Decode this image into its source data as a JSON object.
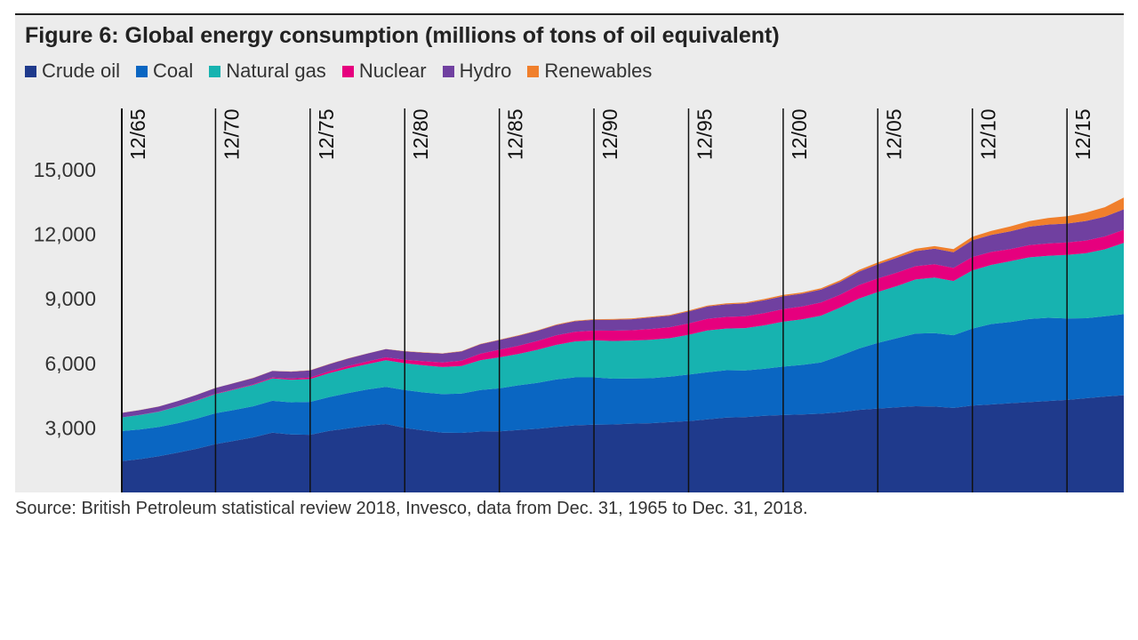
{
  "chart_data": {
    "type": "area",
    "stacked": true,
    "title": "Figure 6: Global energy consumption (millions of tons of oil equivalent)",
    "x_tick_labels": [
      "12/65",
      "12/70",
      "12/75",
      "12/80",
      "12/85",
      "12/90",
      "12/95",
      "12/00",
      "12/05",
      "12/10",
      "12/15"
    ],
    "x_tick_years": [
      1965,
      1970,
      1975,
      1980,
      1985,
      1990,
      1995,
      2000,
      2005,
      2010,
      2015
    ],
    "x_range": [
      1965,
      2018
    ],
    "ylim": [
      0,
      15000
    ],
    "y_ticks": [
      3000,
      6000,
      9000,
      12000,
      15000
    ],
    "y_tick_labels": [
      "3,000",
      "6,000",
      "9,000",
      "12,000",
      "15,000"
    ],
    "grid": "vertical lines at tick years",
    "legend_position": "top-left",
    "x": [
      1965,
      1966,
      1967,
      1968,
      1969,
      1970,
      1971,
      1972,
      1973,
      1974,
      1975,
      1976,
      1977,
      1978,
      1979,
      1980,
      1981,
      1982,
      1983,
      1984,
      1985,
      1986,
      1987,
      1988,
      1989,
      1990,
      1991,
      1992,
      1993,
      1994,
      1995,
      1996,
      1997,
      1998,
      1999,
      2000,
      2001,
      2002,
      2003,
      2004,
      2005,
      2006,
      2007,
      2008,
      2009,
      2010,
      2011,
      2012,
      2013,
      2014,
      2015,
      2016,
      2017,
      2018
    ],
    "series": [
      {
        "name": "Crude oil",
        "color": "#1f3a8c",
        "values": [
          1450,
          1550,
          1680,
          1850,
          2030,
          2250,
          2400,
          2560,
          2780,
          2700,
          2680,
          2860,
          2980,
          3100,
          3180,
          3000,
          2880,
          2780,
          2770,
          2830,
          2840,
          2900,
          2960,
          3050,
          3120,
          3150,
          3160,
          3200,
          3220,
          3270,
          3320,
          3400,
          3480,
          3500,
          3560,
          3600,
          3630,
          3660,
          3730,
          3840,
          3900,
          3960,
          4010,
          3990,
          3930,
          4040,
          4090,
          4150,
          4200,
          4250,
          4300,
          4380,
          4460,
          4520
        ]
      },
      {
        "name": "Coal",
        "color": "#0a66c2",
        "values": [
          1400,
          1380,
          1360,
          1370,
          1400,
          1430,
          1440,
          1450,
          1480,
          1490,
          1530,
          1570,
          1640,
          1680,
          1730,
          1760,
          1770,
          1790,
          1830,
          1930,
          2000,
          2080,
          2130,
          2200,
          2230,
          2200,
          2130,
          2100,
          2090,
          2110,
          2160,
          2190,
          2200,
          2170,
          2190,
          2250,
          2300,
          2380,
          2620,
          2850,
          3050,
          3210,
          3380,
          3420,
          3380,
          3580,
          3740,
          3770,
          3860,
          3870,
          3790,
          3720,
          3730,
          3770
        ]
      },
      {
        "name": "Natural gas",
        "color": "#17b3b0",
        "values": [
          630,
          670,
          710,
          770,
          840,
          890,
          940,
          990,
          1040,
          1050,
          1060,
          1110,
          1150,
          1180,
          1240,
          1250,
          1260,
          1260,
          1280,
          1390,
          1440,
          1460,
          1540,
          1610,
          1670,
          1720,
          1750,
          1760,
          1790,
          1790,
          1850,
          1940,
          1940,
          1970,
          2020,
          2090,
          2120,
          2180,
          2240,
          2320,
          2370,
          2420,
          2510,
          2580,
          2520,
          2700,
          2750,
          2830,
          2870,
          2880,
          2950,
          3020,
          3110,
          3310
        ]
      },
      {
        "name": "Nuclear",
        "color": "#e6007e",
        "values": [
          5,
          7,
          10,
          12,
          15,
          19,
          25,
          33,
          43,
          54,
          71,
          87,
          105,
          125,
          130,
          160,
          190,
          215,
          250,
          300,
          355,
          380,
          410,
          440,
          450,
          455,
          480,
          480,
          500,
          510,
          525,
          545,
          540,
          550,
          570,
          585,
          600,
          610,
          600,
          625,
          625,
          630,
          620,
          620,
          610,
          625,
          600,
          560,
          565,
          575,
          580,
          590,
          600,
          610
        ]
      },
      {
        "name": "Hydro",
        "color": "#7040a0",
        "values": [
          210,
          220,
          230,
          240,
          250,
          265,
          280,
          290,
          300,
          320,
          330,
          335,
          350,
          365,
          380,
          390,
          400,
          410,
          425,
          440,
          450,
          460,
          470,
          480,
          490,
          500,
          510,
          515,
          535,
          540,
          560,
          570,
          585,
          595,
          600,
          600,
          590,
          600,
          600,
          630,
          660,
          690,
          700,
          720,
          730,
          780,
          790,
          830,
          860,
          880,
          880,
          910,
          920,
          950
        ]
      },
      {
        "name": "Renewables",
        "color": "#f07f2c",
        "values": [
          5,
          5,
          5,
          6,
          6,
          6,
          7,
          7,
          8,
          8,
          9,
          9,
          10,
          10,
          11,
          12,
          13,
          14,
          15,
          16,
          18,
          20,
          22,
          24,
          26,
          30,
          32,
          34,
          36,
          38,
          40,
          42,
          45,
          48,
          51,
          55,
          58,
          62,
          68,
          75,
          84,
          94,
          105,
          120,
          138,
          160,
          192,
          225,
          262,
          300,
          345,
          390,
          440,
          550
        ]
      }
    ]
  },
  "source": "Source: British Petroleum statistical review 2018, Invesco, data from Dec. 31, 1965 to Dec. 31, 2018."
}
